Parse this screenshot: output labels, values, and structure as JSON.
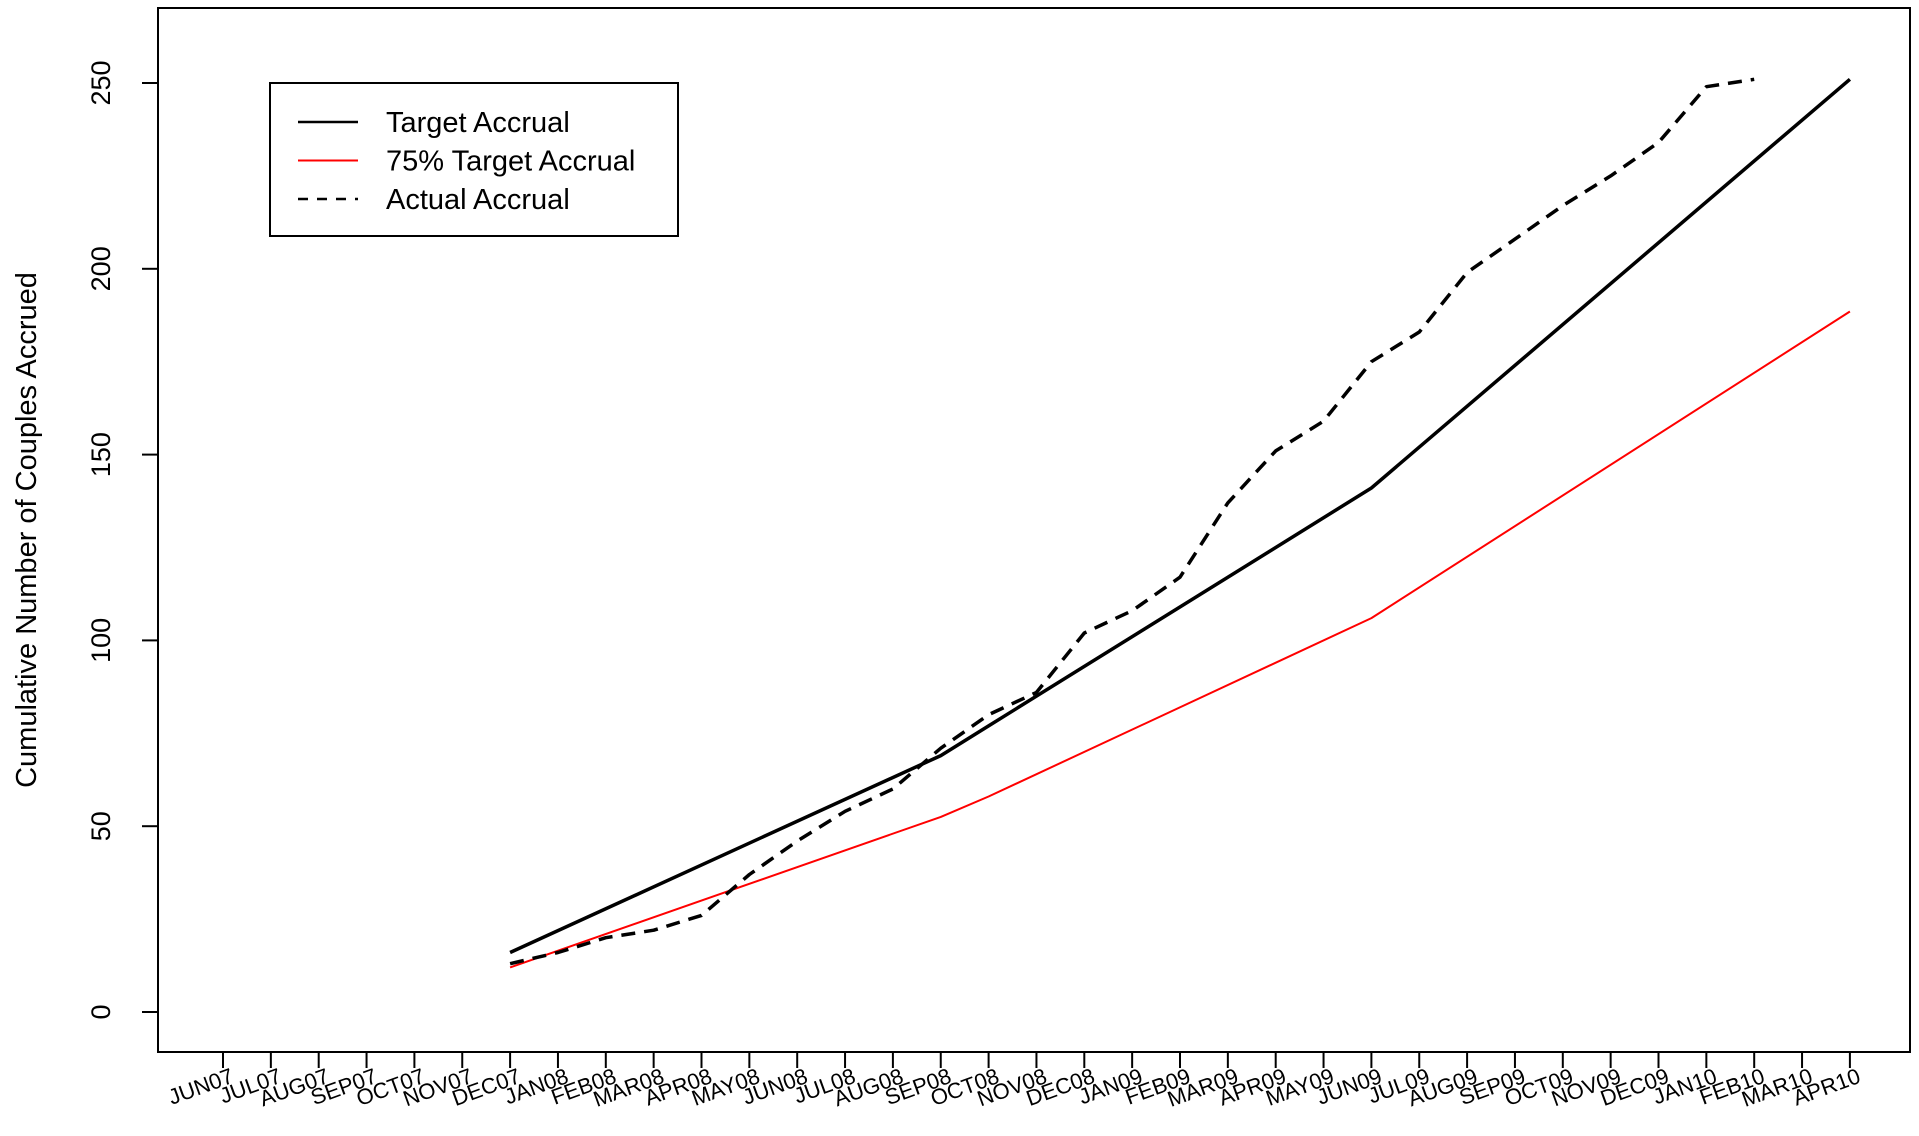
{
  "chart_data": {
    "type": "line",
    "title": "",
    "xlabel": "",
    "ylabel": "Cumulative Number of Couples Accrued",
    "ylim": [
      -20,
      270
    ],
    "y_ticks": [
      0,
      50,
      100,
      150,
      200,
      250
    ],
    "grid": false,
    "legend_position": "top-left",
    "categories": [
      "JUN07",
      "JUL07",
      "AUG07",
      "SEP07",
      "OCT07",
      "NOV07",
      "DEC07",
      "JAN08",
      "FEB08",
      "MAR08",
      "APR08",
      "MAY08",
      "JUN08",
      "JUL08",
      "AUG08",
      "SEP08",
      "OCT08",
      "NOV08",
      "DEC08",
      "JAN09",
      "FEB09",
      "MAR09",
      "APR09",
      "MAY09",
      "JUN09",
      "JUL09",
      "AUG09",
      "SEP09",
      "OCT09",
      "NOV09",
      "DEC09",
      "JAN10",
      "FEB10",
      "MAR10",
      "APR10"
    ],
    "series": [
      {
        "name": "Target Accrual",
        "color": "#000000",
        "style": "solid",
        "points": [
          [
            "DEC07",
            16
          ],
          [
            "SEP08",
            69
          ],
          [
            "OCT08",
            77
          ],
          [
            "JUN09",
            141
          ],
          [
            "APR10",
            251
          ]
        ]
      },
      {
        "name": "75% Target Accrual",
        "color": "#ff0000",
        "style": "solid",
        "points": [
          [
            "DEC07",
            12
          ],
          [
            "SEP08",
            52.5
          ],
          [
            "OCT08",
            58
          ],
          [
            "JUN09",
            106
          ],
          [
            "APR10",
            188.5
          ]
        ]
      },
      {
        "name": "Actual Accrual",
        "color": "#000000",
        "style": "dashed",
        "points": [
          [
            "DEC07",
            13
          ],
          [
            "JAN08",
            16
          ],
          [
            "FEB08",
            20
          ],
          [
            "MAR08",
            22
          ],
          [
            "APR08",
            26
          ],
          [
            "MAY08",
            37
          ],
          [
            "JUN08",
            46
          ],
          [
            "JUL08",
            54
          ],
          [
            "AUG08",
            60
          ],
          [
            "SEP08",
            71
          ],
          [
            "OCT08",
            80
          ],
          [
            "NOV08",
            86
          ],
          [
            "DEC08",
            102
          ],
          [
            "JAN09",
            108
          ],
          [
            "FEB09",
            117
          ],
          [
            "MAR09",
            137
          ],
          [
            "APR09",
            151
          ],
          [
            "MAY09",
            159
          ],
          [
            "JUN09",
            175
          ],
          [
            "JUL09",
            183
          ],
          [
            "AUG09",
            199
          ],
          [
            "SEP09",
            208
          ],
          [
            "OCT09",
            217
          ],
          [
            "NOV09",
            225
          ],
          [
            "DEC09",
            234
          ],
          [
            "JAN10",
            249
          ],
          [
            "FEB10",
            251
          ]
        ]
      }
    ]
  }
}
